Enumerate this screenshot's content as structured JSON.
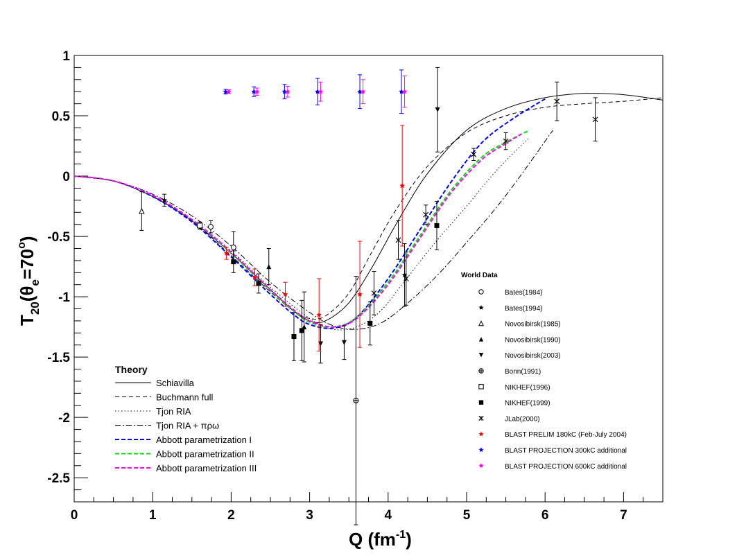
{
  "chart_data": {
    "type": "scatter",
    "xlabel": "Q (fm",
    "xlabel_sup": "-1",
    "xlabel_tail": ")",
    "ylabel": "T",
    "ylabel_sub": "20",
    "ylabel_paren_open": "(θ",
    "ylabel_sub2": "e",
    "ylabel_rest": "=70",
    "ylabel_sup": "o",
    "ylabel_close": ")",
    "xlim": [
      0,
      7.5
    ],
    "ylim": [
      -2.7,
      1
    ],
    "x_ticks": [
      "0",
      "1",
      "2",
      "3",
      "4",
      "5",
      "6",
      "7"
    ],
    "y_ticks": [
      "1",
      "0.5",
      "0",
      "-0.5",
      "-1",
      "-1.5",
      "-2",
      "-2.5"
    ],
    "x_tick_values": [
      0,
      1,
      2,
      3,
      4,
      5,
      6,
      7
    ],
    "y_tick_values": [
      1,
      0.5,
      0,
      -0.5,
      -1,
      -1.5,
      -2,
      -2.5
    ],
    "theory_legend": {
      "title": "Theory",
      "items": [
        "Schiavilla",
        "Buchmann full",
        "Tjon RIA",
        "Tjon RIA + πρω",
        "Abbott parametrization I",
        "Abbott parametrization II",
        "Abbott parametrization III"
      ]
    },
    "theory_curves": [
      {
        "name": "Schiavilla",
        "color": "#000000",
        "dash": "none",
        "width": 1,
        "x": [
          0,
          0.5,
          1,
          1.5,
          2,
          2.5,
          2.8,
          3.0,
          3.2,
          3.5,
          3.8,
          4.1,
          4.5,
          5.0,
          5.5,
          6.0,
          6.5,
          7.0,
          7.5
        ],
        "y": [
          0,
          -0.04,
          -0.17,
          -0.37,
          -0.64,
          -0.94,
          -1.12,
          -1.2,
          -1.2,
          -1.05,
          -0.75,
          -0.4,
          0.02,
          0.38,
          0.56,
          0.65,
          0.685,
          0.675,
          0.63
        ]
      },
      {
        "name": "Buchmann full",
        "color": "#000000",
        "dash": "6,4",
        "width": 1,
        "x": [
          0,
          0.5,
          1,
          1.5,
          2,
          2.5,
          2.8,
          3.0,
          3.2,
          3.5,
          3.8,
          4.1,
          4.5,
          5.0,
          5.5,
          6.0,
          6.5,
          7.0,
          7.5
        ],
        "y": [
          0,
          -0.04,
          -0.17,
          -0.37,
          -0.66,
          -0.96,
          -1.12,
          -1.18,
          -1.16,
          -0.97,
          -0.62,
          -0.28,
          0.08,
          0.36,
          0.5,
          0.57,
          0.6,
          0.62,
          0.65
        ]
      },
      {
        "name": "Tjon RIA",
        "color": "#000000",
        "dash": "1.5,3",
        "width": 1,
        "x": [
          0,
          0.5,
          1,
          1.5,
          2,
          2.5,
          3.0,
          3.3,
          3.6,
          3.9,
          4.2,
          4.6,
          5.0,
          5.4,
          5.8
        ],
        "y": [
          0,
          -0.04,
          -0.16,
          -0.36,
          -0.62,
          -0.92,
          -1.18,
          -1.27,
          -1.25,
          -1.12,
          -0.88,
          -0.55,
          -0.25,
          0.06,
          0.32
        ]
      },
      {
        "name": "Tjon RIA + πρω",
        "color": "#000000",
        "dash": "8,3,2,3",
        "width": 1,
        "x": [
          0,
          0.5,
          1,
          1.5,
          2,
          2.5,
          3.0,
          3.3,
          3.6,
          3.9,
          4.2,
          4.6,
          5.0,
          5.5,
          6.1
        ],
        "y": [
          0,
          -0.04,
          -0.15,
          -0.33,
          -0.58,
          -0.88,
          -1.13,
          -1.24,
          -1.27,
          -1.22,
          -1.08,
          -0.84,
          -0.55,
          -0.16,
          0.38
        ]
      },
      {
        "name": "Abbott parametrization I",
        "color": "#0000ff",
        "dash": "6,3",
        "width": 2,
        "x": [
          0,
          0.5,
          1,
          1.5,
          2,
          2.5,
          2.8,
          3.0,
          3.3,
          3.6,
          4.0,
          4.4,
          4.8,
          5.2,
          5.6,
          6.0
        ],
        "y": [
          0,
          -0.04,
          -0.17,
          -0.38,
          -0.67,
          -0.98,
          -1.15,
          -1.23,
          -1.26,
          -1.17,
          -0.85,
          -0.45,
          -0.05,
          0.28,
          0.48,
          0.64
        ]
      },
      {
        "name": "Abbott parametrization II",
        "color": "#00e000",
        "dash": "6,3",
        "width": 2,
        "x": [
          0,
          0.5,
          1,
          1.5,
          2,
          2.5,
          2.8,
          3.0,
          3.3,
          3.6,
          4.0,
          4.4,
          4.8,
          5.2,
          5.5,
          5.8
        ],
        "y": [
          0,
          -0.04,
          -0.16,
          -0.36,
          -0.64,
          -0.95,
          -1.12,
          -1.21,
          -1.25,
          -1.17,
          -0.88,
          -0.5,
          -0.12,
          0.16,
          0.28,
          0.38
        ]
      },
      {
        "name": "Abbott parametrization III",
        "color": "#ff00ff",
        "dash": "6,3",
        "width": 2,
        "x": [
          0,
          0.5,
          1,
          1.5,
          2,
          2.5,
          2.8,
          3.0,
          3.3,
          3.6,
          4.0,
          4.4,
          4.8,
          5.2,
          5.5,
          5.7
        ],
        "y": [
          0,
          -0.04,
          -0.16,
          -0.36,
          -0.63,
          -0.94,
          -1.11,
          -1.2,
          -1.25,
          -1.18,
          -0.9,
          -0.52,
          -0.14,
          0.14,
          0.27,
          0.35
        ]
      }
    ],
    "data_legend": {
      "title": "World Data",
      "items": [
        "Bates(1984)",
        "Bates(1994)",
        "Novosibirsk(1985)",
        "Novosibirsk(1990)",
        "Novosibirsk(2003)",
        "Bonn(1991)",
        "NIKHEF(1996)",
        "NIKHEF(1999)",
        "JLab(2000)",
        "BLAST PRELIM 180kC (Feb-July 2004)",
        "BLAST PROJECTION 300kC additional",
        "BLAST PROJECTION 600kC additional"
      ]
    },
    "data_series": [
      {
        "name": "Bates(1984)",
        "marker": "circle-open",
        "color": "#000000",
        "points": [
          {
            "x": 1.74,
            "y": -0.42,
            "e": 0.05
          },
          {
            "x": 2.03,
            "y": -0.59,
            "e": 0.13
          }
        ]
      },
      {
        "name": "Bates(1994)",
        "marker": "star-filled",
        "color": "#000000",
        "points": [
          {
            "x": 1.15,
            "y": -0.2,
            "e": 0.05
          },
          {
            "x": 4.21,
            "y": -0.82,
            "e": 0.26
          }
        ]
      },
      {
        "name": "Novosibirsk(1985)",
        "marker": "triangle-up-open",
        "color": "#000000",
        "points": [
          {
            "x": 0.86,
            "y": -0.29,
            "e": 0.16
          }
        ]
      },
      {
        "name": "Novosibirsk(1990)",
        "marker": "triangle-up-filled",
        "color": "#000000",
        "points": [
          {
            "x": 2.48,
            "y": -0.75,
            "e": 0.15
          },
          {
            "x": 2.93,
            "y": -1.25,
            "e": 0.29
          }
        ]
      },
      {
        "name": "Novosibirsk(2003)",
        "marker": "triangle-down-filled",
        "color": "#000000",
        "points": [
          {
            "x": 3.14,
            "y": -1.39,
            "e": 0.16
          },
          {
            "x": 3.44,
            "y": -1.38,
            "e": 0.14
          },
          {
            "x": 4.63,
            "y": 0.55,
            "e": 0.35
          }
        ]
      },
      {
        "name": "Bonn(1991)",
        "marker": "cross-open",
        "color": "#000000",
        "points": [
          {
            "x": 3.59,
            "y": -1.86,
            "e": 1.03
          }
        ]
      },
      {
        "name": "NIKHEF(1996)",
        "marker": "square-open",
        "color": "#000000",
        "points": [
          {
            "x": 1.6,
            "y": -0.41,
            "e": 0.03
          }
        ]
      },
      {
        "name": "NIKHEF(1999)",
        "marker": "square-filled",
        "color": "#000000",
        "points": [
          {
            "x": 2.03,
            "y": -0.71,
            "e": 0.09
          },
          {
            "x": 2.35,
            "y": -0.89,
            "e": 0.08
          },
          {
            "x": 2.8,
            "y": -1.33,
            "e": 0.2
          },
          {
            "x": 2.9,
            "y": -1.28,
            "e": 0.25
          },
          {
            "x": 3.77,
            "y": -1.22,
            "e": 0.18
          },
          {
            "x": 4.62,
            "y": -0.41,
            "e": 0.2
          }
        ]
      },
      {
        "name": "JLab(2000)",
        "marker": "x-cross",
        "color": "#000000",
        "points": [
          {
            "x": 3.82,
            "y": -0.97,
            "e": 0.18
          },
          {
            "x": 4.13,
            "y": -0.53,
            "e": 0.16
          },
          {
            "x": 4.48,
            "y": -0.32,
            "e": 0.08
          },
          {
            "x": 4.23,
            "y": -0.85,
            "e": 0.22
          },
          {
            "x": 5.09,
            "y": 0.18,
            "e": 0.05
          },
          {
            "x": 5.5,
            "y": 0.29,
            "e": 0.07
          },
          {
            "x": 6.15,
            "y": 0.62,
            "e": 0.16
          },
          {
            "x": 6.64,
            "y": 0.47,
            "e": 0.18
          }
        ]
      },
      {
        "name": "BLAST PRELIM 180kC (Feb-July 2004)",
        "marker": "star-filled",
        "color": "#ff0000",
        "points": [
          {
            "x": 1.94,
            "y": -0.64,
            "e": 0.05
          },
          {
            "x": 2.3,
            "y": -0.84,
            "e": 0.07
          },
          {
            "x": 2.69,
            "y": -0.98,
            "e": 0.1
          },
          {
            "x": 3.12,
            "y": -1.15,
            "e": 0.3
          },
          {
            "x": 3.64,
            "y": -0.98,
            "e": 0.44
          },
          {
            "x": 4.18,
            "y": -0.08,
            "e": 0.5
          }
        ]
      },
      {
        "name": "BLAST PROJECTION 300kC additional",
        "marker": "star-filled",
        "color": "#0000ff",
        "points": [
          {
            "x": 1.93,
            "y": 0.7,
            "e": 0.02
          },
          {
            "x": 2.29,
            "y": 0.7,
            "e": 0.04
          },
          {
            "x": 2.68,
            "y": 0.7,
            "e": 0.06
          },
          {
            "x": 3.1,
            "y": 0.7,
            "e": 0.11
          },
          {
            "x": 3.64,
            "y": 0.7,
            "e": 0.14
          },
          {
            "x": 4.17,
            "y": 0.7,
            "e": 0.18
          }
        ]
      },
      {
        "name": "BLAST PROJECTION 600kC additional",
        "marker": "star-filled",
        "color": "#ff00ff",
        "points": [
          {
            "x": 1.97,
            "y": 0.7,
            "e": 0.015
          },
          {
            "x": 2.33,
            "y": 0.7,
            "e": 0.03
          },
          {
            "x": 2.72,
            "y": 0.7,
            "e": 0.045
          },
          {
            "x": 3.14,
            "y": 0.7,
            "e": 0.08
          },
          {
            "x": 3.68,
            "y": 0.7,
            "e": 0.1
          },
          {
            "x": 4.21,
            "y": 0.7,
            "e": 0.13
          }
        ]
      }
    ]
  }
}
